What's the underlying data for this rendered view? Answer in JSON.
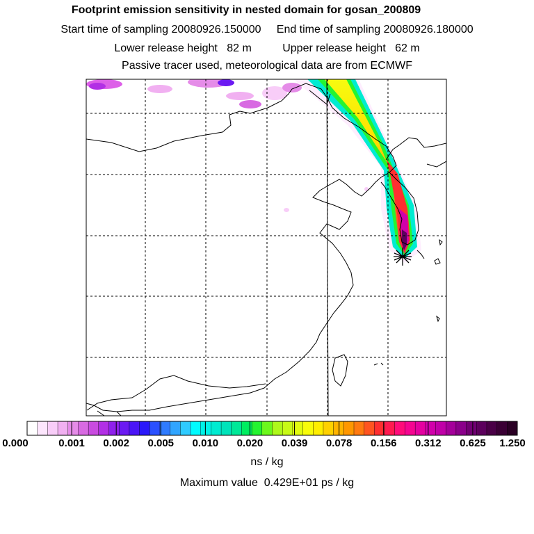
{
  "header": {
    "title": "Footprint emission sensitivity in nested domain for gosan_200809",
    "line2": "Start time of sampling 20080926.150000     End time of sampling 20080926.180000",
    "line3": "Lower release height   82 m          Upper release height   62 m",
    "line4": "Passive tracer used, meteorological data are from ECMWF"
  },
  "legend": {
    "ticks": [
      "0.000",
      "0.001",
      "0.002",
      "0.005",
      "0.010",
      "0.020",
      "0.039",
      "0.078",
      "0.156",
      "0.312",
      "0.625",
      "1.250"
    ],
    "unit": "ns / kg",
    "max_value": "Maximum value  0.429E+01 ps / kg",
    "colors": [
      "#ffffff",
      "#fde6fd",
      "#f8cdf8",
      "#f1b0f1",
      "#e58ce8",
      "#d86ae2",
      "#c94be0",
      "#b22fe5",
      "#8f20ec",
      "#6b1af2",
      "#4a14f6",
      "#2a18fa",
      "#2a50ff",
      "#2f7bff",
      "#30a5ff",
      "#2fcbff",
      "#00fbff",
      "#00f3e8",
      "#00ebd1",
      "#00e3ba",
      "#00e898",
      "#00ee60",
      "#25f430",
      "#6cf81c",
      "#aef81a",
      "#c8fa16",
      "#e2fc10",
      "#f8fc0a",
      "#ffee00",
      "#ffd100",
      "#ffb400",
      "#ff9700",
      "#ff7a10",
      "#ff5420",
      "#ff2e30",
      "#ff1a50",
      "#ff0c7a",
      "#f50591",
      "#e401a0",
      "#d100aa",
      "#c000a8",
      "#a4009a",
      "#8a008a",
      "#700072",
      "#5c005c",
      "#4a0046",
      "#3a0034",
      "#2a0024"
    ]
  },
  "map": {
    "receptor_icon": "star-icon"
  }
}
